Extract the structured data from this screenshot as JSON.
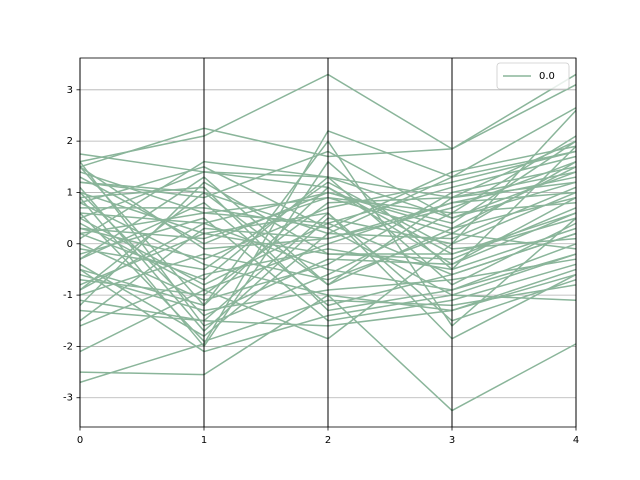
{
  "chart_data": {
    "type": "parallel",
    "xlim": [
      0,
      4
    ],
    "xticks": [
      0,
      1,
      2,
      3,
      4
    ],
    "ylim": [
      -3.57,
      3.62
    ],
    "yticks": [
      -3,
      -2,
      -1,
      0,
      1,
      2,
      3
    ],
    "grid": true,
    "legend": "upper right",
    "series": [
      {
        "name": "0.0",
        "color": "#8ab59a",
        "values": [
          [
            1.75,
            1.4,
            1.3,
            0.9,
            2.0
          ],
          [
            1.6,
            2.1,
            3.3,
            1.85,
            3.3
          ],
          [
            1.5,
            2.25,
            1.7,
            1.85,
            3.1
          ],
          [
            -2.7,
            -1.95,
            2.2,
            1.3,
            2.65
          ],
          [
            -2.5,
            -2.55,
            -1.0,
            -3.25,
            -1.95
          ],
          [
            -2.1,
            -0.9,
            -1.85,
            0.0,
            2.6
          ],
          [
            1.5,
            -1.2,
            2.0,
            -1.6,
            0.5
          ],
          [
            0.9,
            -2.0,
            1.6,
            -0.5,
            1.9
          ],
          [
            -1.3,
            -1.5,
            0.6,
            -1.85,
            -0.6
          ],
          [
            0.3,
            0.1,
            0.9,
            0.6,
            2.1
          ],
          [
            1.2,
            1.0,
            -0.8,
            0.3,
            1.5
          ],
          [
            -0.5,
            -2.1,
            -1.4,
            -1.0,
            -1.1
          ],
          [
            0.6,
            0.4,
            -0.5,
            -0.9,
            -0.2
          ],
          [
            -0.9,
            1.0,
            0.2,
            1.3,
            1.8
          ],
          [
            1.0,
            -1.4,
            -0.3,
            -0.4,
            0.9
          ],
          [
            0.2,
            -0.7,
            1.3,
            0.5,
            1.4
          ],
          [
            -0.3,
            0.8,
            -1.2,
            -0.6,
            0.2
          ],
          [
            1.4,
            0.6,
            0.4,
            1.1,
            1.7
          ],
          [
            -1.0,
            -0.2,
            -0.7,
            0.2,
            -0.1
          ],
          [
            0.5,
            1.4,
            1.1,
            -0.2,
            0.6
          ],
          [
            -0.7,
            -1.0,
            0.8,
            0.9,
            1.2
          ],
          [
            0.8,
            -0.4,
            -1.0,
            -1.3,
            -0.6
          ],
          [
            -1.5,
            0.3,
            0.1,
            0.7,
            1.6
          ],
          [
            0.1,
            1.6,
            1.3,
            -0.8,
            0.4
          ],
          [
            1.1,
            -1.7,
            0.5,
            0.0,
            1.0
          ],
          [
            -0.2,
            0.5,
            -1.5,
            -1.1,
            -0.4
          ],
          [
            0.4,
            -0.9,
            0.0,
            0.8,
            1.3
          ],
          [
            -1.2,
            1.2,
            -0.2,
            -0.3,
            0.7
          ],
          [
            1.3,
            0.0,
            1.0,
            0.4,
            2.0
          ],
          [
            -0.6,
            -1.3,
            -0.9,
            -0.7,
            -0.3
          ],
          [
            0.7,
            0.7,
            0.3,
            1.4,
            1.9
          ],
          [
            -0.1,
            -0.5,
            1.2,
            -0.1,
            0.1
          ],
          [
            1.6,
            -1.6,
            -0.6,
            0.6,
            0.8
          ],
          [
            -0.8,
            0.2,
            0.6,
            -1.5,
            -0.7
          ],
          [
            0.0,
            -1.1,
            -0.4,
            1.0,
            1.5
          ],
          [
            0.9,
            1.1,
            -1.3,
            -0.9,
            0.0
          ],
          [
            -0.4,
            -1.8,
            0.2,
            0.1,
            1.1
          ],
          [
            1.2,
            0.9,
            1.8,
            0.5,
            1.2
          ],
          [
            -1.6,
            -0.6,
            -0.1,
            -0.5,
            0.3
          ],
          [
            0.3,
            -0.3,
            0.7,
            1.2,
            1.8
          ],
          [
            0.6,
            -1.9,
            -1.1,
            -1.2,
            -0.8
          ],
          [
            -0.9,
            0.4,
            1.0,
            0.3,
            0.9
          ],
          [
            1.0,
            0.2,
            -0.2,
            -0.2,
            0.5
          ],
          [
            -0.3,
            1.3,
            -0.8,
            0.9,
            1.4
          ],
          [
            0.5,
            -0.8,
            0.4,
            -0.6,
            0.2
          ],
          [
            -1.1,
            -1.5,
            -1.6,
            -1.3,
            -0.5
          ],
          [
            0.2,
            0.6,
            0.9,
            0.2,
            1.6
          ],
          [
            1.5,
            -0.1,
            0.1,
            0.8,
            1.0
          ],
          [
            -0.5,
            -1.2,
            1.1,
            -0.4,
            0.6
          ],
          [
            0.8,
            1.5,
            0.3,
            -1.0,
            -0.2
          ]
        ]
      }
    ]
  }
}
